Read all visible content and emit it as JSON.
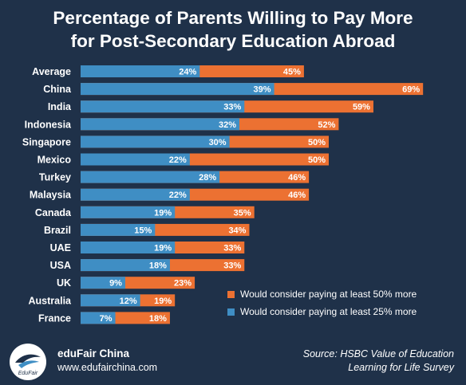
{
  "title_line1": "Percentage of Parents Willing to Pay More",
  "title_line2": "for Post-Secondary Education Abroad",
  "colors": {
    "background": "#1f3149",
    "blue": "#3f8ec4",
    "orange": "#ec7132"
  },
  "chart_data": {
    "type": "bar",
    "orientation": "horizontal",
    "stacked": true,
    "categories": [
      "Average",
      "China",
      "India",
      "Indonesia",
      "Singapore",
      "Mexico",
      "Turkey",
      "Malaysia",
      "Canada",
      "Brazil",
      "UAE",
      "USA",
      "UK",
      "Australia",
      "France"
    ],
    "series": [
      {
        "name": "Would consider paying at least 25% more",
        "color": "#3f8ec4",
        "values": [
          24,
          39,
          33,
          32,
          30,
          22,
          28,
          22,
          19,
          15,
          19,
          18,
          9,
          12,
          7
        ]
      },
      {
        "name": "Would consider paying at least 50% more",
        "color": "#ec7132",
        "values": [
          45,
          69,
          59,
          52,
          50,
          50,
          46,
          46,
          35,
          34,
          33,
          33,
          23,
          19,
          18
        ]
      }
    ],
    "value_suffix": "%",
    "legend_position": "bottom-right"
  },
  "legend": [
    {
      "label": "Would consider paying at least 50% more",
      "color": "#ec7132"
    },
    {
      "label": "Would consider paying at least 25% more",
      "color": "#3f8ec4"
    }
  ],
  "footer": {
    "brand_name": "eduFair China",
    "brand_url": "www.edufairchina.com",
    "logo_text": "EduFair",
    "source_line1": "Source: HSBC Value of Education",
    "source_line2": "Learning for Life Survey"
  }
}
